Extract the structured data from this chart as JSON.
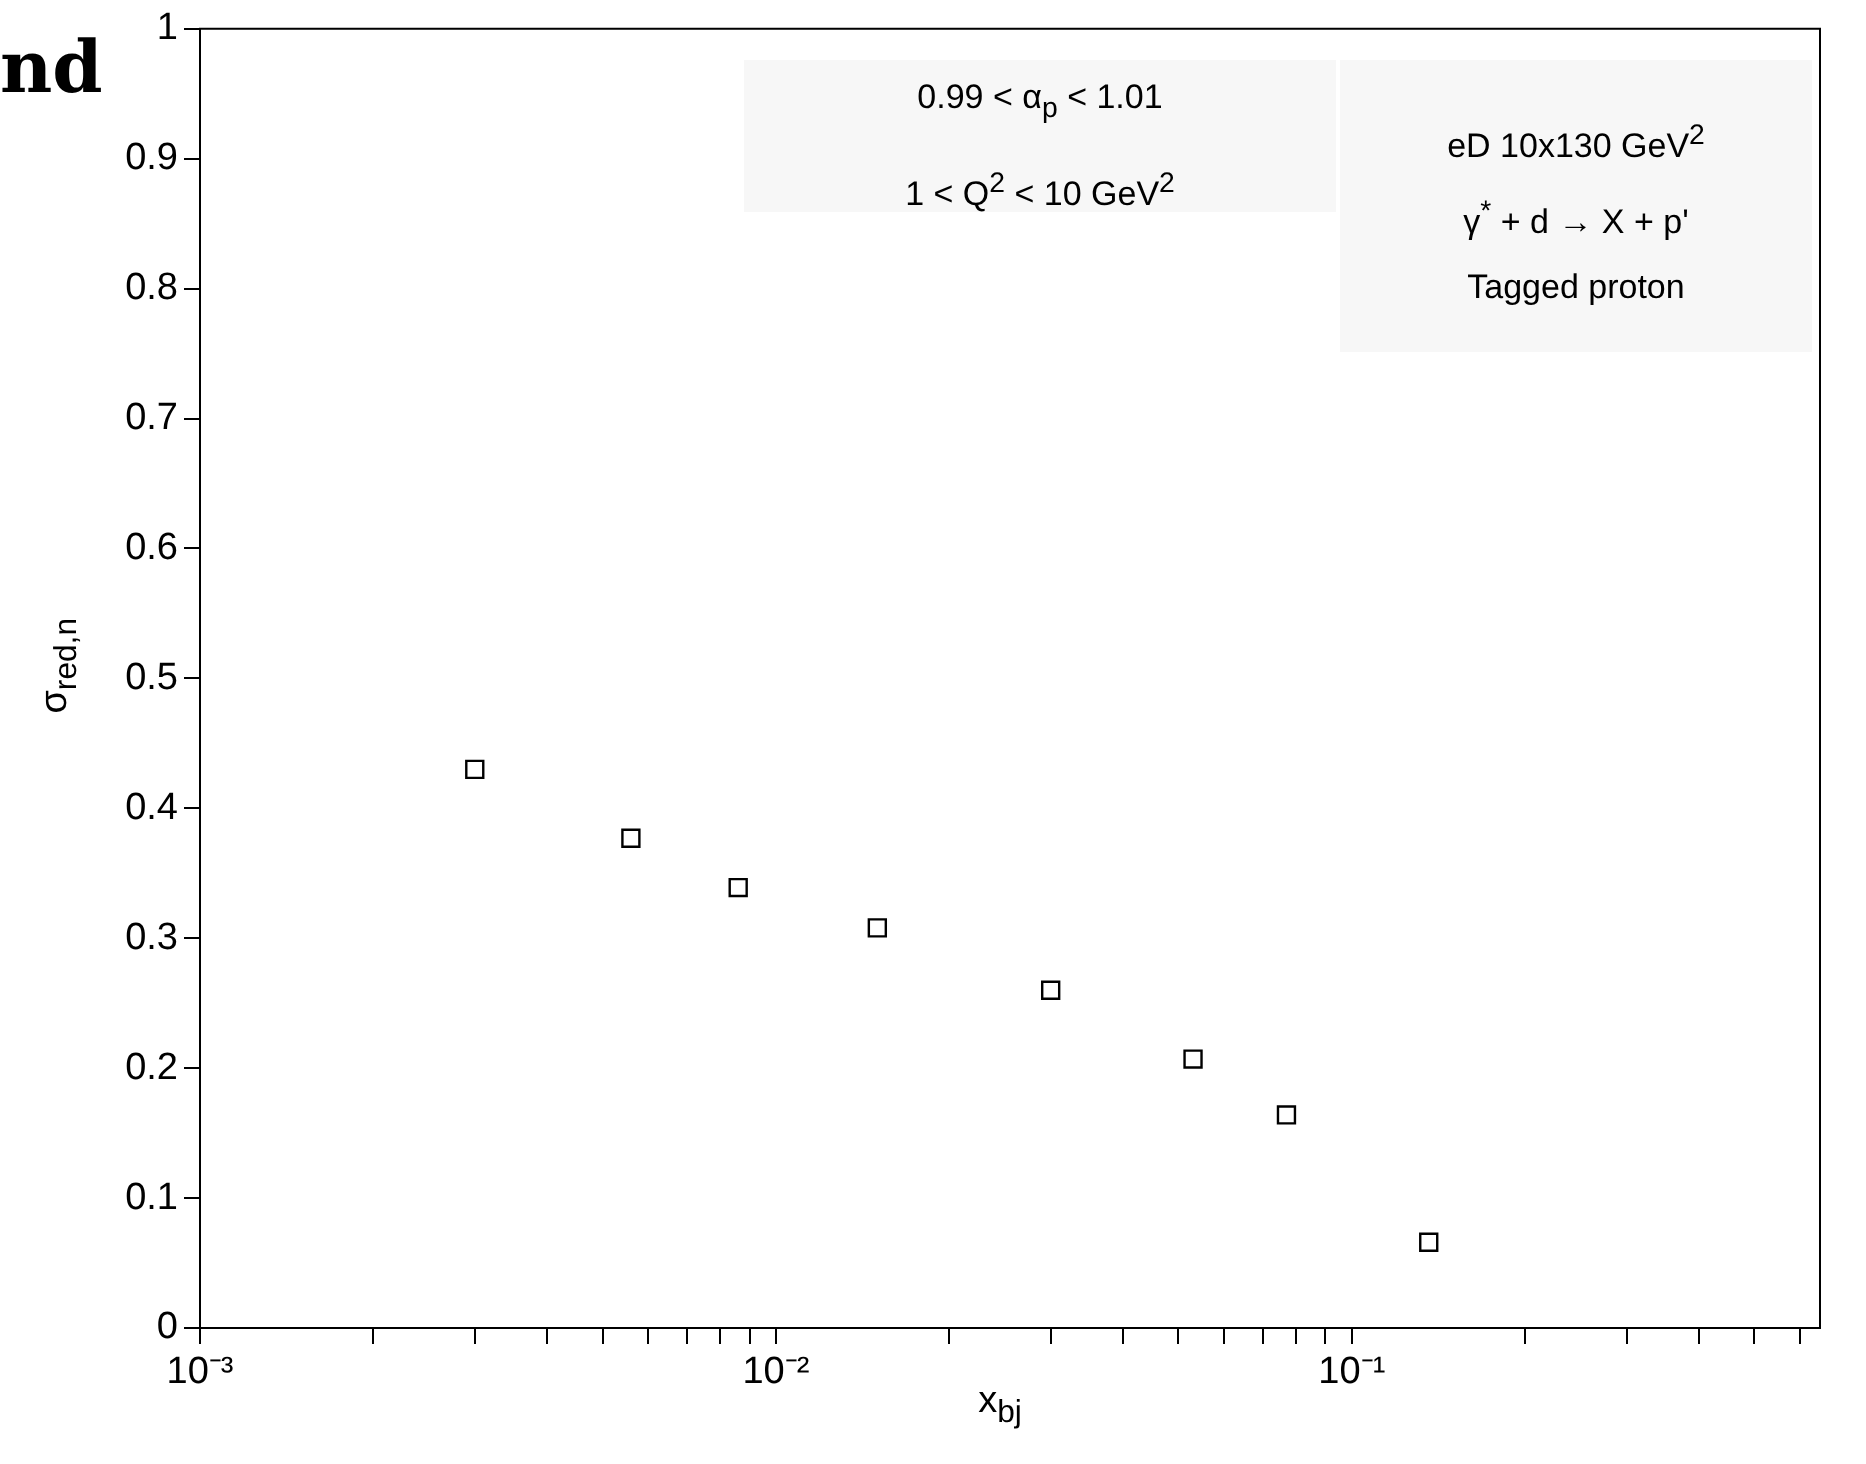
{
  "chart_data": {
    "type": "scatter",
    "xlabel": "x$_{bj}$",
    "ylabel": "σ$_{red,n}$",
    "annotations": [
      "nd",
      "0.99 < α$_{p}$ < 1.01",
      "1 < Q$^{2}$ < 10 GeV$^{2}$",
      "eD 10x130 GeV$^{2}$",
      "γ$^{*}$ + d → X + p'",
      "Tagged proton"
    ],
    "x": [
      0.003,
      0.0056,
      0.0086,
      0.015,
      0.03,
      0.053,
      0.077,
      0.136
    ],
    "series": [
      {
        "color": "#000000",
        "values": [
          0.43,
          0.377,
          0.339,
          0.308,
          0.26,
          0.207,
          0.164,
          0.066
        ]
      }
    ],
    "marker": "square",
    "log": "x",
    "grid": false,
    "legend": false,
    "xlim": [
      0.001,
      0.65
    ],
    "ylim": [
      0,
      1
    ],
    "xticks": [
      {
        "value": 0.001,
        "label": "10⁻³"
      },
      {
        "value": 0.002,
        "label": null
      },
      {
        "value": 0.003,
        "label": null
      },
      {
        "value": 0.004,
        "label": null
      },
      {
        "value": 0.005,
        "label": null
      },
      {
        "value": 0.006,
        "label": null
      },
      {
        "value": 0.007,
        "label": null
      },
      {
        "value": 0.008,
        "label": null
      },
      {
        "value": 0.009,
        "label": null
      },
      {
        "value": 0.01,
        "label": "10⁻²"
      },
      {
        "value": 0.02,
        "label": null
      },
      {
        "value": 0.03,
        "label": null
      },
      {
        "value": 0.04,
        "label": null
      },
      {
        "value": 0.05,
        "label": null
      },
      {
        "value": 0.06,
        "label": null
      },
      {
        "value": 0.07,
        "label": null
      },
      {
        "value": 0.08,
        "label": null
      },
      {
        "value": 0.09,
        "label": null
      },
      {
        "value": 0.1,
        "label": "10⁻¹"
      },
      {
        "value": 0.2,
        "label": null
      },
      {
        "value": 0.3,
        "label": null
      },
      {
        "value": 0.4,
        "label": null
      },
      {
        "value": 0.5,
        "label": null
      },
      {
        "value": 0.6,
        "label": null
      }
    ],
    "yticks": [
      0,
      0.1,
      0.2,
      0.3,
      0.4,
      0.5,
      0.6,
      0.7,
      0.8,
      0.9,
      1
    ]
  }
}
